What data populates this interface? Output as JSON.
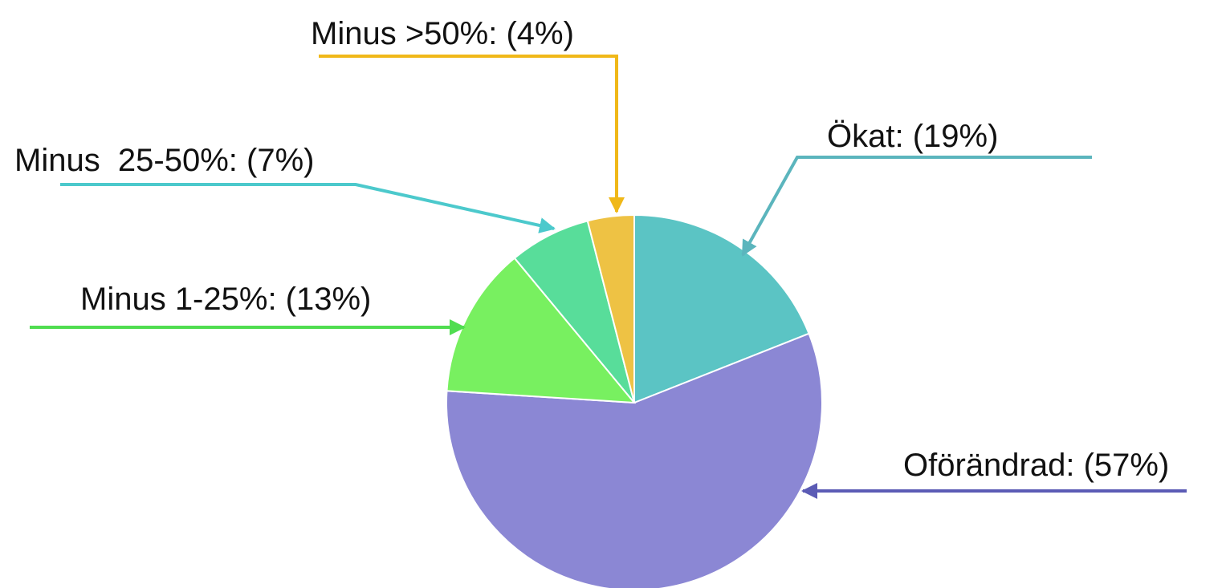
{
  "chart_data": {
    "type": "pie",
    "values": [
      19,
      57,
      13,
      7,
      4
    ],
    "value_labels": [
      "Ökat: (19%)",
      "Oförändrad: (57%)",
      "Minus 1-25%: (13%)",
      "Minus  25-50%: (7%)",
      "Minus >50%: (4%)"
    ],
    "colors": [
      "#5bc4c4",
      "#8b87d4",
      "#78f060",
      "#58dd9a",
      "#eec244"
    ]
  }
}
